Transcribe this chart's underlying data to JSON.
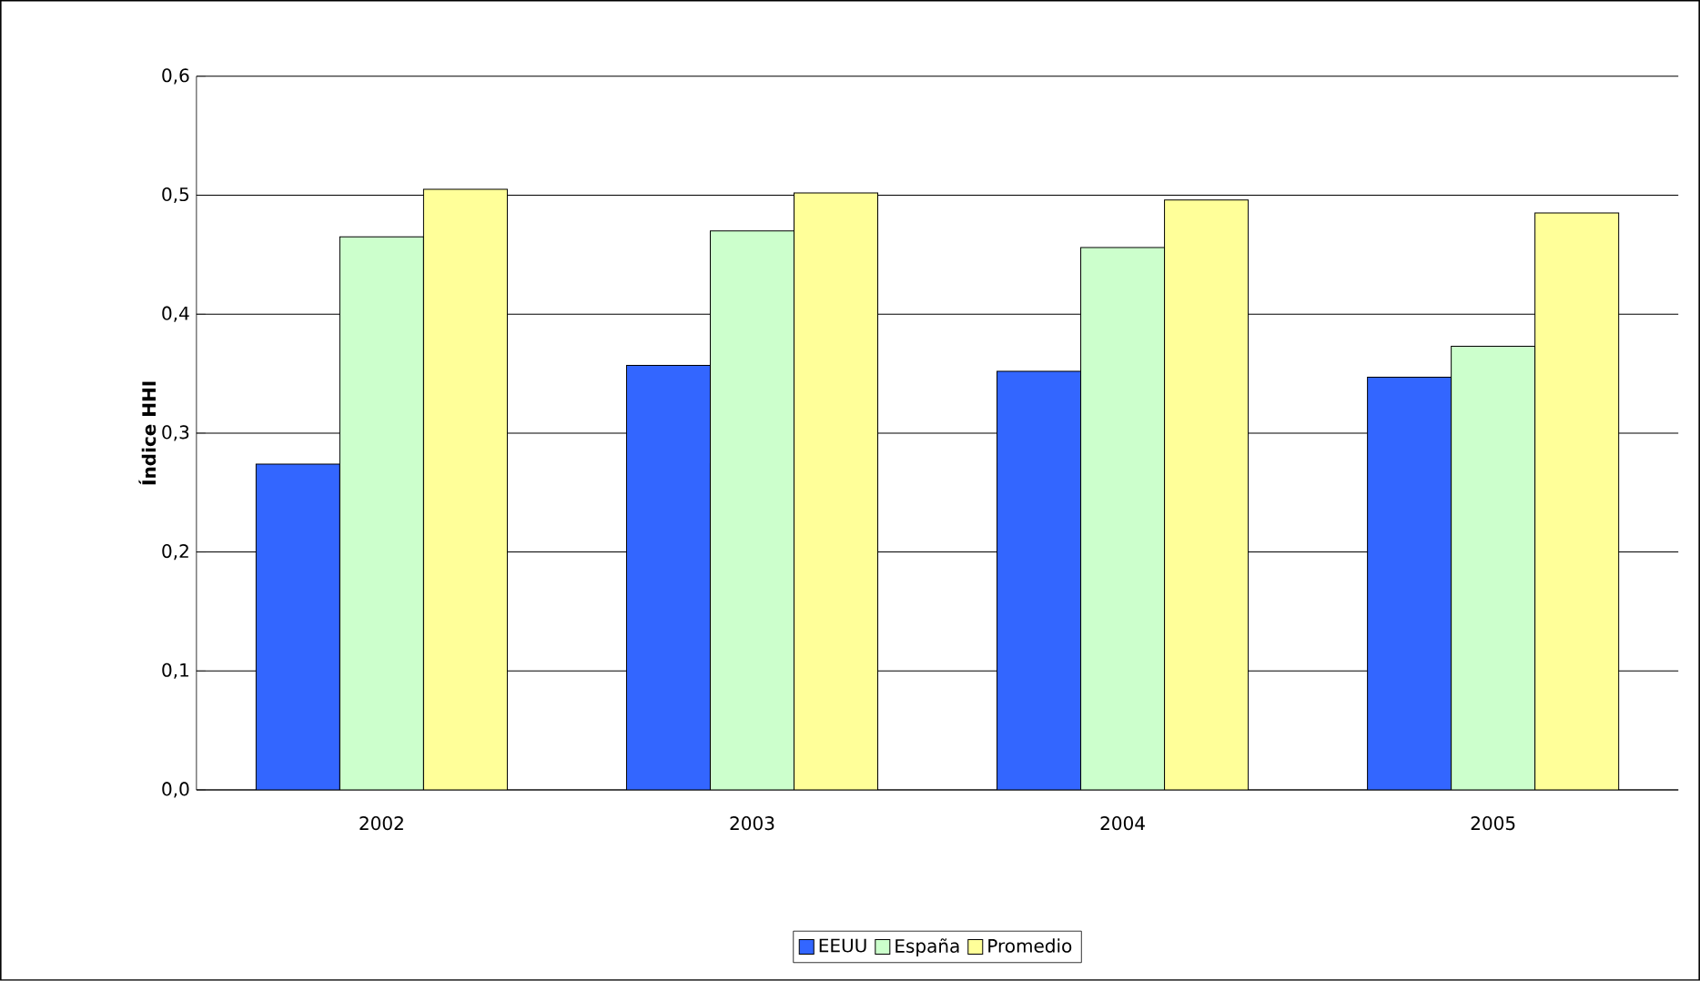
{
  "chart_data": {
    "type": "bar",
    "ylabel": "Índice HHI",
    "categories": [
      "2002",
      "2003",
      "2004",
      "2005"
    ],
    "series": [
      {
        "name": "EEUU",
        "color": "#3366ff",
        "values": [
          0.274,
          0.357,
          0.352,
          0.347
        ]
      },
      {
        "name": "España",
        "color": "#ccffcc",
        "values": [
          0.465,
          0.47,
          0.456,
          0.373
        ]
      },
      {
        "name": "Promedio",
        "color": "#ffff99",
        "values": [
          0.505,
          0.502,
          0.496,
          0.485
        ]
      }
    ],
    "ylim": [
      0,
      0.6
    ],
    "yticks": [
      {
        "value": 0,
        "label": "0,0"
      },
      {
        "value": 0.1,
        "label": "0,1"
      },
      {
        "value": 0.2,
        "label": "0,2"
      },
      {
        "value": 0.3,
        "label": "0,3"
      },
      {
        "value": 0.4,
        "label": "0,4"
      },
      {
        "value": 0.5,
        "label": "0,5"
      },
      {
        "value": 0.6,
        "label": "0,6"
      }
    ],
    "grid": "y",
    "legend": "bottom"
  }
}
